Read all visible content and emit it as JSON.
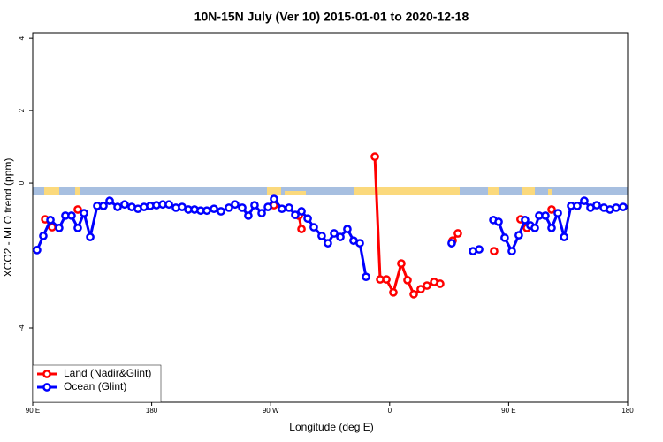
{
  "chart_data": {
    "type": "line",
    "title": "10N-15N July (Ver 10)   2015-01-01 to 2020-12-18",
    "x_label": "Longitude (deg E)",
    "y_label": "XCO2 - MLO trend (ppm)",
    "xlim": [
      90,
      540
    ],
    "ylim": [
      -6.05,
      4.15
    ],
    "xticks": [
      {
        "value": 90,
        "label": "90 E"
      },
      180,
      {
        "value": 270,
        "label": "90 W"
      },
      {
        "value": 360,
        "label": "0"
      },
      {
        "value": 450,
        "label": "90 E"
      },
      {
        "value": 540,
        "label": "180"
      }
    ],
    "yticks": [
      4,
      2,
      0,
      -4
    ],
    "legend": "bottom-left",
    "series": [
      {
        "name": "Land (Nadir&Glint)",
        "color": "#ff0000",
        "x": [
          99.4,
          104.7,
          null,
          124.1,
          null,
          272.5,
          null,
          291.3,
          293.3,
          null,
          348.8,
          352.8,
          357.5,
          362.8,
          368.8,
          373.5,
          378.2,
          383.5,
          388.2,
          393.6,
          398.2,
          null,
          407.6,
          411.6,
          null,
          439,
          null,
          459,
          463.8,
          null,
          482.5
        ],
        "values": [
          -1.0,
          -1.22,
          null,
          -0.73,
          null,
          -0.61,
          null,
          -0.9,
          -1.27,
          null,
          0.73,
          -2.66,
          -2.66,
          -3.02,
          -2.22,
          -2.68,
          -3.07,
          -2.93,
          -2.83,
          -2.73,
          -2.78,
          null,
          -1.59,
          -1.39,
          null,
          -1.88,
          null,
          -1.0,
          -1.24,
          null,
          -0.73
        ]
      },
      {
        "name": "Ocean (Glint)",
        "color": "#0000ff",
        "x": [
          93.3,
          98,
          103.4,
          110,
          114.7,
          119.4,
          124.1,
          128.8,
          133.5,
          138.8,
          143.5,
          148.2,
          154.2,
          159.5,
          164.9,
          169.6,
          174.2,
          178.9,
          183.6,
          188.3,
          193,
          198.3,
          203,
          207.7,
          212.4,
          217,
          221.7,
          227.1,
          232.4,
          238.4,
          243.1,
          248.5,
          253.1,
          257.8,
          263.2,
          267.9,
          272.5,
          278.5,
          283.9,
          288.6,
          293.3,
          298,
          302.6,
          308.6,
          313.3,
          318,
          322.7,
          328,
          332.7,
          337.4,
          342.1,
          null,
          406.9,
          null,
          423,
          427.7,
          null,
          438.4,
          442.4,
          447,
          452.4,
          457.7,
          462.4,
          466.4,
          469.8,
          473.1,
          477.8,
          482.5,
          487.2,
          492,
          497.2,
          501.9,
          507.2,
          511.9,
          516.6,
          522,
          526.6,
          531.3,
          536.6
        ],
        "values": [
          -1.85,
          -1.46,
          -1.02,
          -1.24,
          -0.9,
          -0.9,
          -1.24,
          -0.83,
          -1.49,
          -0.63,
          -0.63,
          -0.49,
          -0.66,
          -0.59,
          -0.66,
          -0.71,
          -0.66,
          -0.63,
          -0.61,
          -0.59,
          -0.59,
          -0.68,
          -0.66,
          -0.73,
          -0.73,
          -0.76,
          -0.76,
          -0.71,
          -0.78,
          -0.68,
          -0.59,
          -0.68,
          -0.9,
          -0.61,
          -0.83,
          -0.66,
          -0.44,
          -0.71,
          -0.68,
          -0.88,
          -0.78,
          -0.98,
          -1.22,
          -1.46,
          -1.66,
          -1.39,
          -1.49,
          -1.27,
          -1.59,
          -1.66,
          -2.59,
          null,
          -1.66,
          null,
          -1.88,
          -1.83,
          null,
          -1.02,
          -1.07,
          -1.51,
          -1.88,
          -1.44,
          -1.02,
          -1.17,
          -1.24,
          -0.9,
          -0.9,
          -1.24,
          -0.83,
          -1.49,
          -0.63,
          -0.63,
          -0.49,
          -0.68,
          -0.61,
          -0.68,
          -0.73,
          -0.68,
          -0.66
        ]
      }
    ]
  }
}
